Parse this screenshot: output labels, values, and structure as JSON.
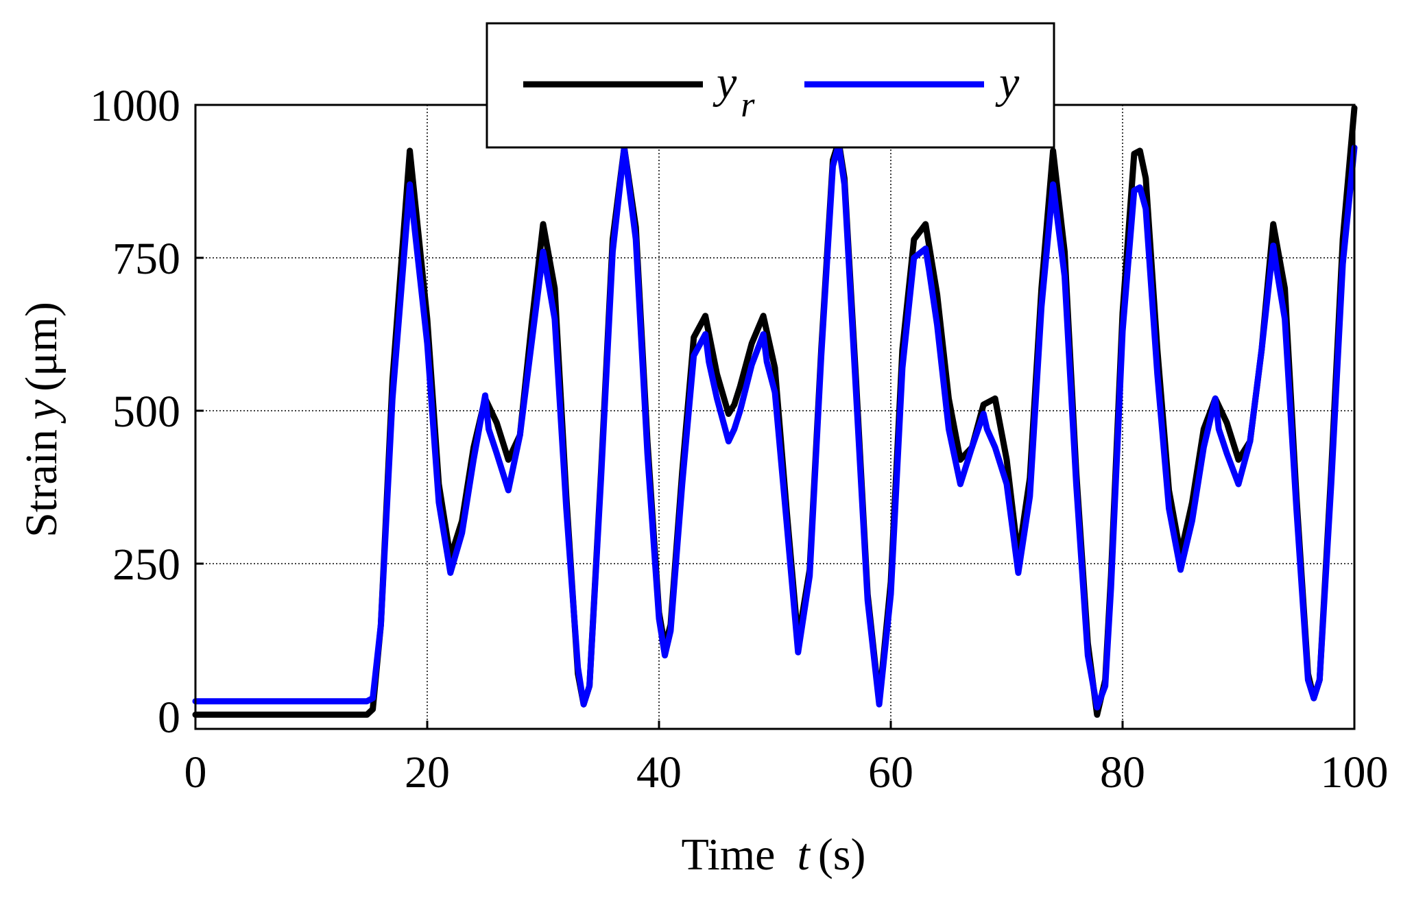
{
  "chart_data": {
    "type": "line",
    "xlabel": {
      "prefix": "Time",
      "symbol": "t",
      "unit": "(s)"
    },
    "ylabel": {
      "prefix": "Strain",
      "symbol": "y",
      "unit": "(μm)"
    },
    "xlim": [
      0,
      100
    ],
    "ylim": [
      0,
      1000
    ],
    "xticks": [
      0,
      20,
      40,
      60,
      80,
      100
    ],
    "yticks": [
      0,
      250,
      500,
      750,
      1000
    ],
    "xtick_labels": [
      "0",
      "20",
      "40",
      "60",
      "80",
      "100"
    ],
    "ytick_labels": [
      "0",
      "250",
      "500",
      "750",
      "1000"
    ],
    "grid": true,
    "legend_position": "top-center",
    "series": [
      {
        "name": "y",
        "subscript": "r",
        "color": "#000000",
        "x": [
          0,
          14.8,
          15.3,
          16.0,
          17.0,
          18.5,
          20.0,
          21.0,
          22.0,
          23.0,
          24.0,
          25.0,
          26.0,
          27.0,
          28.0,
          29.0,
          30.0,
          31.0,
          32.0,
          33.0,
          33.5,
          34.0,
          35.0,
          36.0,
          37.0,
          38.0,
          39.0,
          40.0,
          40.5,
          41.0,
          42.0,
          43.0,
          44.0,
          45.0,
          46.0,
          46.5,
          47.0,
          48.0,
          49.0,
          50.0,
          51.0,
          52.0,
          53.0,
          54.0,
          55.0,
          55.5,
          56.0,
          57.0,
          58.0,
          59.0,
          60.0,
          61.0,
          62.0,
          63.0,
          64.0,
          65.0,
          66.0,
          67.0,
          68.0,
          69.0,
          70.0,
          71.0,
          72.0,
          73.0,
          74.0,
          75.0,
          76.0,
          77.0,
          77.8,
          78.5,
          79.0,
          80.0,
          81.0,
          81.5,
          82.0,
          83.0,
          84.0,
          85.0,
          86.0,
          87.0,
          88.0,
          89.0,
          90.0,
          91.0,
          92.0,
          93.0,
          94.0,
          95.0,
          96.0,
          96.5,
          97.0,
          98.0,
          99.0,
          100.0
        ],
        "y": [
          3,
          3,
          12,
          150,
          550,
          925,
          650,
          380,
          260,
          320,
          440,
          520,
          480,
          420,
          460,
          640,
          805,
          700,
          360,
          70,
          20,
          50,
          400,
          780,
          930,
          800,
          450,
          170,
          115,
          150,
          400,
          620,
          655,
          560,
          495,
          510,
          540,
          610,
          655,
          570,
          340,
          125,
          240,
          600,
          910,
          940,
          880,
          550,
          200,
          25,
          220,
          600,
          780,
          805,
          690,
          520,
          420,
          440,
          510,
          520,
          420,
          260,
          390,
          700,
          925,
          760,
          400,
          120,
          3,
          60,
          230,
          660,
          920,
          925,
          880,
          600,
          370,
          265,
          350,
          470,
          520,
          480,
          420,
          450,
          600,
          805,
          700,
          360,
          70,
          30,
          60,
          400,
          780,
          995
        ]
      },
      {
        "name": "y",
        "subscript": "",
        "color": "#0000ff",
        "x": [
          0,
          14.8,
          15.3,
          16.0,
          17.0,
          18.5,
          20.0,
          21.0,
          22.0,
          23.0,
          24.0,
          25.0,
          25.3,
          26.0,
          27.0,
          28.0,
          29.0,
          30.0,
          31.0,
          32.0,
          33.0,
          33.5,
          34.0,
          35.0,
          36.0,
          37.0,
          38.0,
          39.0,
          40.0,
          40.5,
          41.0,
          42.0,
          43.0,
          44.0,
          44.3,
          45.0,
          46.0,
          46.5,
          47.0,
          48.0,
          49.0,
          49.3,
          50.0,
          51.0,
          52.0,
          53.0,
          54.0,
          55.0,
          55.5,
          56.0,
          57.0,
          58.0,
          59.0,
          60.0,
          61.0,
          62.0,
          63.0,
          63.3,
          64.0,
          65.0,
          66.0,
          67.0,
          68.0,
          68.3,
          69.0,
          70.0,
          71.0,
          72.0,
          73.0,
          74.0,
          75.0,
          76.0,
          77.0,
          77.8,
          78.5,
          79.0,
          80.0,
          81.0,
          81.5,
          82.0,
          83.0,
          84.0,
          85.0,
          86.0,
          87.0,
          88.0,
          88.3,
          89.0,
          90.0,
          91.0,
          92.0,
          93.0,
          93.3,
          94.0,
          95.0,
          96.0,
          96.5,
          97.0,
          98.0,
          99.0,
          100.0
        ],
        "y": [
          25,
          25,
          30,
          150,
          520,
          870,
          610,
          350,
          235,
          300,
          420,
          525,
          470,
          430,
          370,
          460,
          610,
          760,
          650,
          340,
          80,
          20,
          50,
          390,
          760,
          930,
          780,
          430,
          160,
          100,
          140,
          380,
          590,
          625,
          580,
          520,
          450,
          470,
          500,
          575,
          625,
          580,
          530,
          320,
          105,
          230,
          590,
          900,
          935,
          870,
          530,
          190,
          20,
          200,
          570,
          750,
          765,
          730,
          640,
          470,
          380,
          440,
          495,
          470,
          440,
          380,
          235,
          360,
          670,
          870,
          720,
          380,
          100,
          15,
          50,
          210,
          630,
          860,
          865,
          830,
          560,
          340,
          240,
          320,
          440,
          520,
          470,
          430,
          380,
          450,
          600,
          770,
          730,
          650,
          340,
          60,
          30,
          60,
          380,
          740,
          930
        ]
      }
    ]
  }
}
